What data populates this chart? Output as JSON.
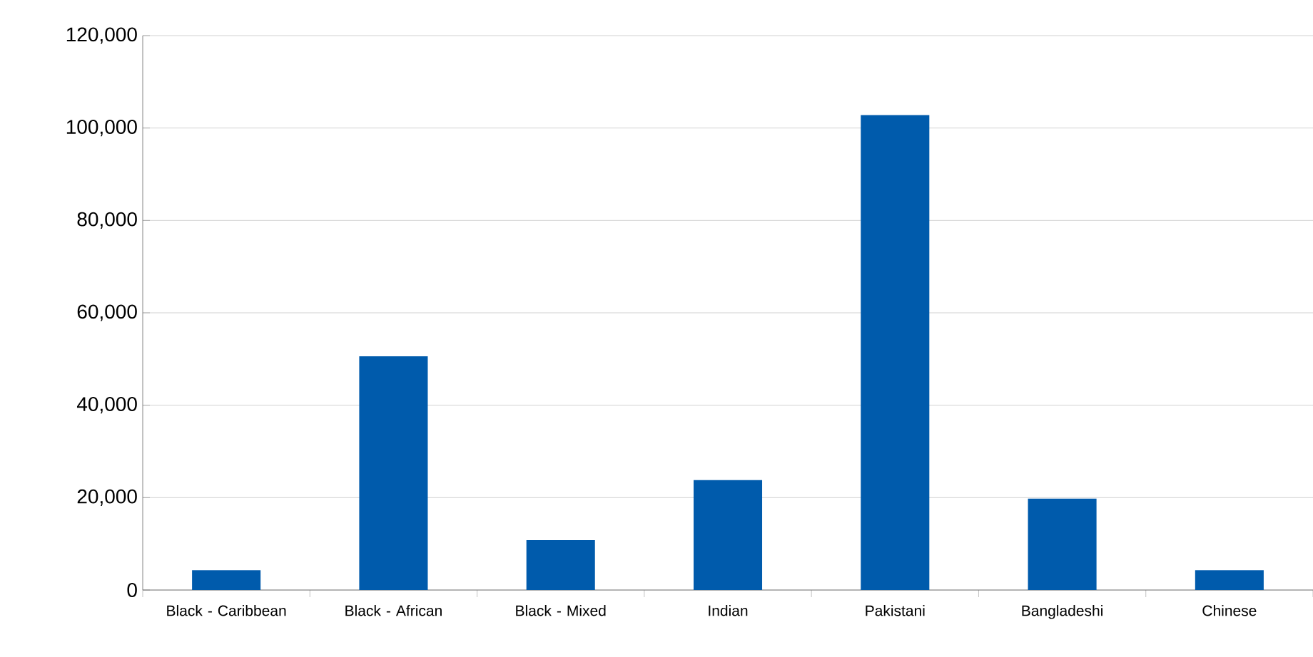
{
  "chart_data": {
    "type": "bar",
    "categories": [
      "Black - Caribbean",
      "Black - African",
      "Black - Mixed",
      "Indian",
      "Pakistani",
      "Bangladeshi",
      "Chinese"
    ],
    "values": [
      4300,
      50600,
      10800,
      23800,
      102800,
      19800,
      4300
    ],
    "color": "#005bac",
    "ylim": [
      0,
      120000
    ],
    "yticks": [
      {
        "value": 0,
        "label": "0"
      },
      {
        "value": 20000,
        "label": "20,000"
      },
      {
        "value": 40000,
        "label": "40,000"
      },
      {
        "value": 60000,
        "label": "60,000"
      },
      {
        "value": 80000,
        "label": "80,000"
      },
      {
        "value": 100000,
        "label": "100,000"
      },
      {
        "value": 120000,
        "label": "120,000"
      }
    ],
    "grid": "y"
  }
}
